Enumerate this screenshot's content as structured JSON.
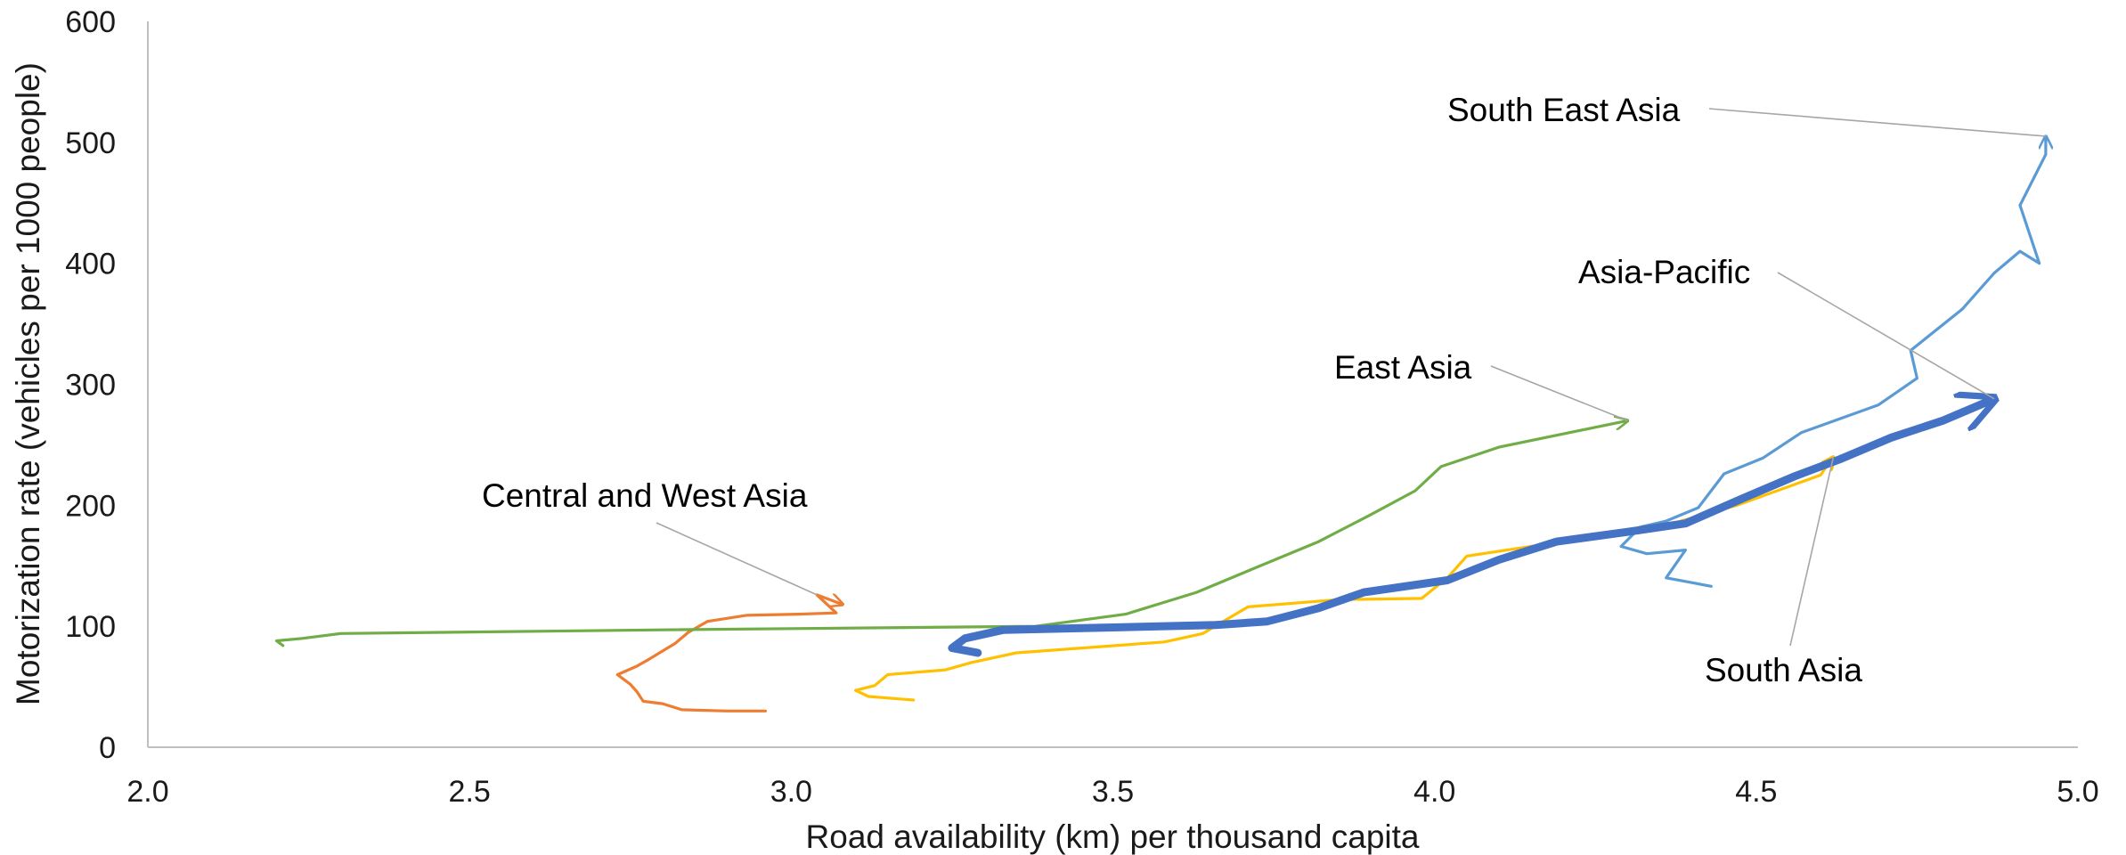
{
  "chart_data": {
    "type": "line",
    "xlabel": "Road availability (km) per thousand capita",
    "ylabel": "Motorization rate (vehicles per 1000 people)",
    "xlim": [
      2.0,
      5.0
    ],
    "ylim": [
      0,
      600
    ],
    "x_ticks": [
      "2.0",
      "2.5",
      "3.0",
      "3.5",
      "4.0",
      "4.5",
      "5.0"
    ],
    "y_ticks": [
      "0",
      "100",
      "200",
      "300",
      "400",
      "500",
      "600"
    ],
    "grid": false,
    "legend": "none (series labelled by annotations)",
    "series": [
      {
        "name": "Central and West Asia",
        "color": "#ED7D31",
        "points": [
          [
            2.96,
            30
          ],
          [
            2.9,
            30
          ],
          [
            2.83,
            31
          ],
          [
            2.8,
            36
          ],
          [
            2.77,
            38
          ],
          [
            2.76,
            46
          ],
          [
            2.75,
            52
          ],
          [
            2.73,
            60
          ],
          [
            2.76,
            67
          ],
          [
            2.78,
            73
          ],
          [
            2.82,
            86
          ],
          [
            2.84,
            95
          ],
          [
            2.87,
            104
          ],
          [
            2.93,
            109
          ],
          [
            3.01,
            110
          ],
          [
            3.07,
            111
          ],
          [
            3.04,
            126
          ],
          [
            3.08,
            118
          ]
        ]
      },
      {
        "name": "East Asia",
        "color": "#70AD47",
        "points": [
          [
            2.21,
            84
          ],
          [
            2.2,
            88
          ],
          [
            2.24,
            90
          ],
          [
            2.3,
            94
          ],
          [
            2.8,
            97
          ],
          [
            3.38,
            100
          ],
          [
            3.52,
            110
          ],
          [
            3.63,
            128
          ],
          [
            3.72,
            148
          ],
          [
            3.82,
            170
          ],
          [
            3.9,
            192
          ],
          [
            3.97,
            212
          ],
          [
            4.01,
            232
          ],
          [
            4.1,
            248
          ],
          [
            4.3,
            270
          ]
        ]
      },
      {
        "name": "South Asia",
        "color": "#FFC000",
        "points": [
          [
            3.19,
            39
          ],
          [
            3.12,
            42
          ],
          [
            3.1,
            47
          ],
          [
            3.13,
            51
          ],
          [
            3.15,
            60
          ],
          [
            3.24,
            64
          ],
          [
            3.28,
            70
          ],
          [
            3.35,
            78
          ],
          [
            3.58,
            87
          ],
          [
            3.64,
            94
          ],
          [
            3.71,
            116
          ],
          [
            3.85,
            122
          ],
          [
            3.98,
            123
          ],
          [
            4.02,
            140
          ],
          [
            4.05,
            158
          ],
          [
            4.2,
            170
          ],
          [
            4.35,
            182
          ],
          [
            4.47,
            200
          ],
          [
            4.6,
            225
          ],
          [
            4.62,
            240
          ]
        ]
      },
      {
        "name": "South East Asia",
        "color": "#5B9BD5",
        "points": [
          [
            4.43,
            133
          ],
          [
            4.36,
            140
          ],
          [
            4.39,
            163
          ],
          [
            4.33,
            160
          ],
          [
            4.29,
            166
          ],
          [
            4.32,
            182
          ],
          [
            4.36,
            187
          ],
          [
            4.41,
            198
          ],
          [
            4.45,
            226
          ],
          [
            4.51,
            239
          ],
          [
            4.57,
            260
          ],
          [
            4.69,
            283
          ],
          [
            4.75,
            305
          ],
          [
            4.74,
            328
          ],
          [
            4.82,
            362
          ],
          [
            4.87,
            392
          ],
          [
            4.91,
            410
          ],
          [
            4.94,
            400
          ],
          [
            4.91,
            448
          ],
          [
            4.95,
            490
          ],
          [
            4.95,
            505
          ]
        ]
      },
      {
        "name": "Asia-Pacific",
        "color": "#4472C4",
        "points": [
          [
            3.29,
            78
          ],
          [
            3.25,
            82
          ],
          [
            3.27,
            90
          ],
          [
            3.33,
            97
          ],
          [
            3.5,
            99
          ],
          [
            3.66,
            101
          ],
          [
            3.74,
            104
          ],
          [
            3.82,
            115
          ],
          [
            3.89,
            128
          ],
          [
            4.02,
            138
          ],
          [
            4.1,
            155
          ],
          [
            4.19,
            170
          ],
          [
            4.3,
            178
          ],
          [
            4.39,
            185
          ],
          [
            4.48,
            206
          ],
          [
            4.56,
            224
          ],
          [
            4.63,
            238
          ],
          [
            4.71,
            256
          ],
          [
            4.79,
            270
          ],
          [
            4.87,
            288
          ]
        ]
      }
    ],
    "annotations": [
      {
        "text": "Central and West Asia",
        "series": "Central and West Asia"
      },
      {
        "text": "East Asia",
        "series": "East Asia"
      },
      {
        "text": "South Asia",
        "series": "South Asia"
      },
      {
        "text": "South East Asia",
        "series": "South East Asia"
      },
      {
        "text": "Asia-Pacific",
        "series": "Asia-Pacific"
      }
    ]
  }
}
